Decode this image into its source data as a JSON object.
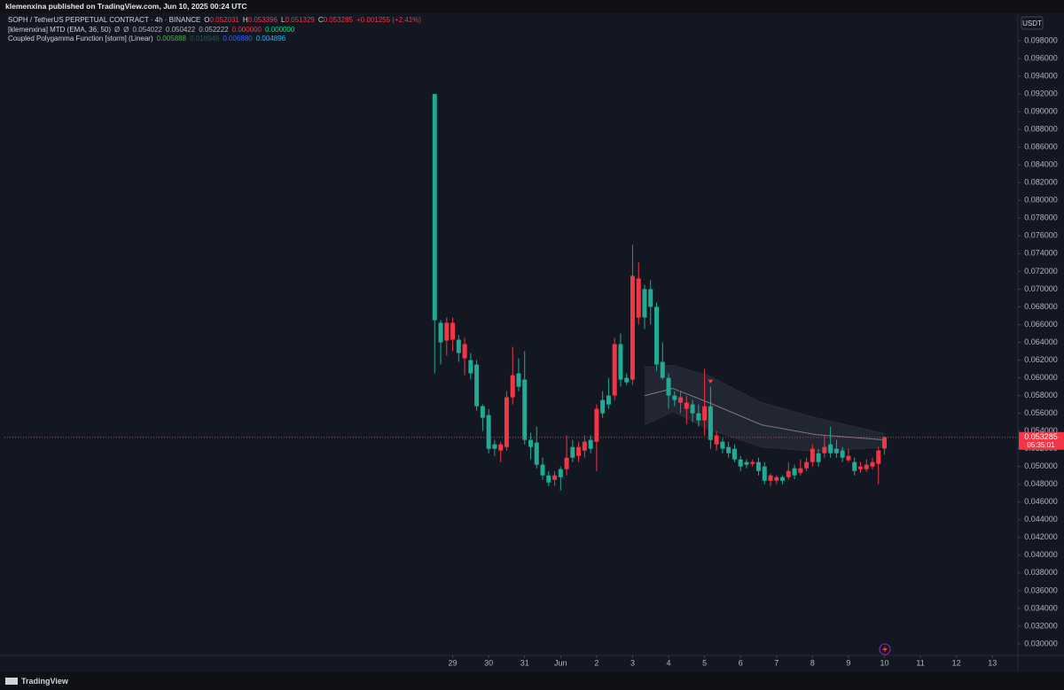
{
  "header": {
    "published": "klemenxina published on TradingView.com, Jun 10, 2025 00:24 UTC"
  },
  "currency": "USDT",
  "footer": {
    "brand": "TradingView"
  },
  "legend": {
    "symbol": "SOPH / TetherUS PERPETUAL CONTRACT · 4h · BINANCE",
    "ohlc_labels": [
      "O",
      "H",
      "L",
      "C"
    ],
    "change": "+0.001255 (+2.41%)",
    "indicators": [
      {
        "name": "[klemenxina] MTD (EMA, 36, 50)",
        "values": [
          "Ø",
          "Ø",
          "0.054022",
          "0.050422",
          "0.052222",
          "0.000000",
          "0.000000"
        ],
        "colors": [
          "#b2b5be",
          "#b2b5be",
          "#b2b5be",
          "#b2b5be",
          "#b2b5be",
          "#f23645",
          "#00e676"
        ]
      },
      {
        "name": "Coupled Polygamma Function [storm] (Linear)",
        "values": [
          "0.005888",
          "0.018946",
          "0.006880",
          "0.004896"
        ],
        "colors": [
          "#4caf50",
          "#1b5e4a",
          "#2962ff",
          "#29b6f6"
        ]
      }
    ]
  },
  "chart_data": {
    "type": "candlestick",
    "up_color": "#f23645",
    "down_color": "#22ab94",
    "x": [
      -12,
      -8,
      -4,
      0,
      4,
      8,
      12,
      16,
      20,
      24,
      28,
      32,
      36,
      40,
      44,
      48,
      52,
      56,
      60,
      64,
      68,
      72,
      76,
      80,
      84,
      88,
      92,
      96,
      100,
      104,
      108,
      112,
      116,
      120,
      124,
      128,
      132,
      136,
      140,
      144,
      148,
      152,
      156,
      160,
      164,
      168,
      172,
      176,
      180,
      184,
      188,
      192,
      196,
      200,
      204,
      208,
      212,
      216,
      220,
      224,
      228,
      232,
      236,
      240,
      244,
      248,
      252,
      256,
      260,
      264,
      268,
      272,
      276,
      280,
      284,
      288
    ],
    "open": [
      0.092,
      0.0662,
      0.0642,
      0.0643,
      0.0643,
      0.0622,
      0.062,
      0.0615,
      0.0568,
      0.0558,
      0.0525,
      0.0518,
      0.0522,
      0.0578,
      0.0605,
      0.0598,
      0.053,
      0.0527,
      0.0502,
      0.049,
      0.0485,
      0.0497,
      0.0497,
      0.0522,
      0.0512,
      0.0518,
      0.053,
      0.0528,
      0.0575,
      0.058,
      0.058,
      0.0638,
      0.06,
      0.0598,
      0.0668,
      0.07,
      0.07,
      0.068,
      0.0618,
      0.06,
      0.058,
      0.0572,
      0.0565,
      0.057,
      0.056,
      0.0552,
      0.0568,
      0.0525,
      0.0528,
      0.0522,
      0.052,
      0.0508,
      0.0505,
      0.0503,
      0.0505,
      0.05,
      0.0484,
      0.0484,
      0.0488,
      0.0488,
      0.0498,
      0.0493,
      0.0498,
      0.0505,
      0.0515,
      0.0515,
      0.0525,
      0.052,
      0.0518,
      0.0507,
      0.0505,
      0.0497,
      0.0497,
      0.05,
      0.0503,
      0.052031
    ],
    "high": [
      0.092,
      0.0665,
      0.0668,
      0.0668,
      0.0648,
      0.0645,
      0.0628,
      0.062,
      0.057,
      0.0565,
      0.053,
      0.0528,
      0.0585,
      0.0635,
      0.0622,
      0.063,
      0.0538,
      0.0545,
      0.051,
      0.0495,
      0.0495,
      0.05,
      0.0535,
      0.053,
      0.0528,
      0.0535,
      0.0535,
      0.057,
      0.0585,
      0.06,
      0.0645,
      0.065,
      0.0605,
      0.075,
      0.073,
      0.0705,
      0.071,
      0.0685,
      0.064,
      0.0605,
      0.0585,
      0.0585,
      0.058,
      0.0575,
      0.057,
      0.061,
      0.059,
      0.054,
      0.0532,
      0.0528,
      0.0525,
      0.0512,
      0.0508,
      0.0508,
      0.051,
      0.0505,
      0.0492,
      0.049,
      0.049,
      0.0505,
      0.0502,
      0.0508,
      0.051,
      0.0525,
      0.052,
      0.0535,
      0.0545,
      0.053,
      0.0522,
      0.052,
      0.051,
      0.0505,
      0.0508,
      0.051,
      0.0522,
      0.053396
    ],
    "low": [
      0.0605,
      0.0615,
      0.0625,
      0.063,
      0.0618,
      0.0603,
      0.0598,
      0.0563,
      0.054,
      0.0515,
      0.0512,
      0.0505,
      0.0518,
      0.057,
      0.0585,
      0.0525,
      0.0508,
      0.0498,
      0.0485,
      0.0478,
      0.0478,
      0.0473,
      0.049,
      0.0505,
      0.0505,
      0.051,
      0.0515,
      0.0495,
      0.0555,
      0.0565,
      0.0575,
      0.059,
      0.0592,
      0.0592,
      0.066,
      0.0655,
      0.066,
      0.0608,
      0.0598,
      0.0565,
      0.0568,
      0.056,
      0.0548,
      0.055,
      0.0545,
      0.0535,
      0.052,
      0.0518,
      0.0515,
      0.051,
      0.0505,
      0.0495,
      0.0498,
      0.05,
      0.049,
      0.048,
      0.0478,
      0.048,
      0.048,
      0.0485,
      0.0486,
      0.049,
      0.0495,
      0.05,
      0.05,
      0.051,
      0.051,
      0.051,
      0.0505,
      0.0505,
      0.049,
      0.0493,
      0.0494,
      0.0497,
      0.048,
      0.051329
    ],
    "close": [
      0.0665,
      0.064,
      0.0662,
      0.0662,
      0.0628,
      0.0638,
      0.0605,
      0.0568,
      0.0555,
      0.052,
      0.052,
      0.0525,
      0.0578,
      0.0603,
      0.059,
      0.053,
      0.0522,
      0.0502,
      0.049,
      0.0482,
      0.049,
      0.0488,
      0.051,
      0.051,
      0.0522,
      0.0528,
      0.052,
      0.0565,
      0.056,
      0.057,
      0.0638,
      0.0598,
      0.0595,
      0.0715,
      0.0712,
      0.0668,
      0.068,
      0.0615,
      0.06,
      0.058,
      0.0575,
      0.0578,
      0.0572,
      0.056,
      0.0552,
      0.0568,
      0.053,
      0.0535,
      0.052,
      0.0515,
      0.0508,
      0.05,
      0.0502,
      0.0505,
      0.0495,
      0.0484,
      0.049,
      0.0488,
      0.0484,
      0.0495,
      0.049,
      0.0498,
      0.0505,
      0.052,
      0.0505,
      0.0522,
      0.0515,
      0.0515,
      0.051,
      0.0512,
      0.0495,
      0.05,
      0.0502,
      0.0505,
      0.0518,
      0.053285
    ],
    "bands": {
      "x": [
        128,
        147,
        171,
        206,
        242,
        288
      ],
      "upper": [
        0.0612,
        0.0614,
        0.0602,
        0.0572,
        0.0555,
        0.0537
      ],
      "mid": [
        0.058,
        0.0588,
        0.0572,
        0.0547,
        0.0536,
        0.053
      ],
      "lower": [
        0.0547,
        0.0562,
        0.0542,
        0.0522,
        0.0517,
        0.0522
      ],
      "fill": "#2a2e39",
      "line_color": "#787b86"
    },
    "signal": {
      "x": 172,
      "y": 0.0596,
      "color": "#f23645"
    },
    "countdown": "05:35:01",
    "xlim": [
      -299,
      377
    ],
    "xticks": [
      {
        "value": 0,
        "label": "29"
      },
      {
        "value": 24,
        "label": "30"
      },
      {
        "value": 48,
        "label": "31"
      },
      {
        "value": 72,
        "label": "Jun"
      },
      {
        "value": 96,
        "label": "2"
      },
      {
        "value": 120,
        "label": "3"
      },
      {
        "value": 144,
        "label": "4"
      },
      {
        "value": 168,
        "label": "5"
      },
      {
        "value": 192,
        "label": "6"
      },
      {
        "value": 216,
        "label": "7"
      },
      {
        "value": 240,
        "label": "8"
      },
      {
        "value": 264,
        "label": "9"
      },
      {
        "value": 288,
        "label": "10"
      },
      {
        "value": 312,
        "label": "11"
      },
      {
        "value": 336,
        "label": "12"
      },
      {
        "value": 360,
        "label": "13"
      }
    ],
    "ylim": [
      0.0287,
      0.1011
    ],
    "yticks": [
      {
        "value": 0.03,
        "label": "0.030000"
      },
      {
        "value": 0.032,
        "label": "0.032000"
      },
      {
        "value": 0.034,
        "label": "0.034000"
      },
      {
        "value": 0.036,
        "label": "0.036000"
      },
      {
        "value": 0.038,
        "label": "0.038000"
      },
      {
        "value": 0.04,
        "label": "0.040000"
      },
      {
        "value": 0.042,
        "label": "0.042000"
      },
      {
        "value": 0.044,
        "label": "0.044000"
      },
      {
        "value": 0.046,
        "label": "0.046000"
      },
      {
        "value": 0.048,
        "label": "0.048000"
      },
      {
        "value": 0.05,
        "label": "0.050000"
      },
      {
        "value": 0.052,
        "label": "0.052000"
      },
      {
        "value": 0.054,
        "label": "0.054000"
      },
      {
        "value": 0.056,
        "label": "0.056000"
      },
      {
        "value": 0.058,
        "label": "0.058000"
      },
      {
        "value": 0.06,
        "label": "0.060000"
      },
      {
        "value": 0.062,
        "label": "0.062000"
      },
      {
        "value": 0.064,
        "label": "0.064000"
      },
      {
        "value": 0.066,
        "label": "0.066000"
      },
      {
        "value": 0.068,
        "label": "0.068000"
      },
      {
        "value": 0.07,
        "label": "0.070000"
      },
      {
        "value": 0.072,
        "label": "0.072000"
      },
      {
        "value": 0.074,
        "label": "0.074000"
      },
      {
        "value": 0.076,
        "label": "0.076000"
      },
      {
        "value": 0.078,
        "label": "0.078000"
      },
      {
        "value": 0.08,
        "label": "0.080000"
      },
      {
        "value": 0.082,
        "label": "0.082000"
      },
      {
        "value": 0.084,
        "label": "0.084000"
      },
      {
        "value": 0.086,
        "label": "0.086000"
      },
      {
        "value": 0.088,
        "label": "0.088000"
      },
      {
        "value": 0.09,
        "label": "0.090000"
      },
      {
        "value": 0.092,
        "label": "0.092000"
      },
      {
        "value": 0.094,
        "label": "0.094000"
      },
      {
        "value": 0.096,
        "label": "0.096000"
      },
      {
        "value": 0.098,
        "label": "0.098000"
      }
    ],
    "grid": false
  }
}
